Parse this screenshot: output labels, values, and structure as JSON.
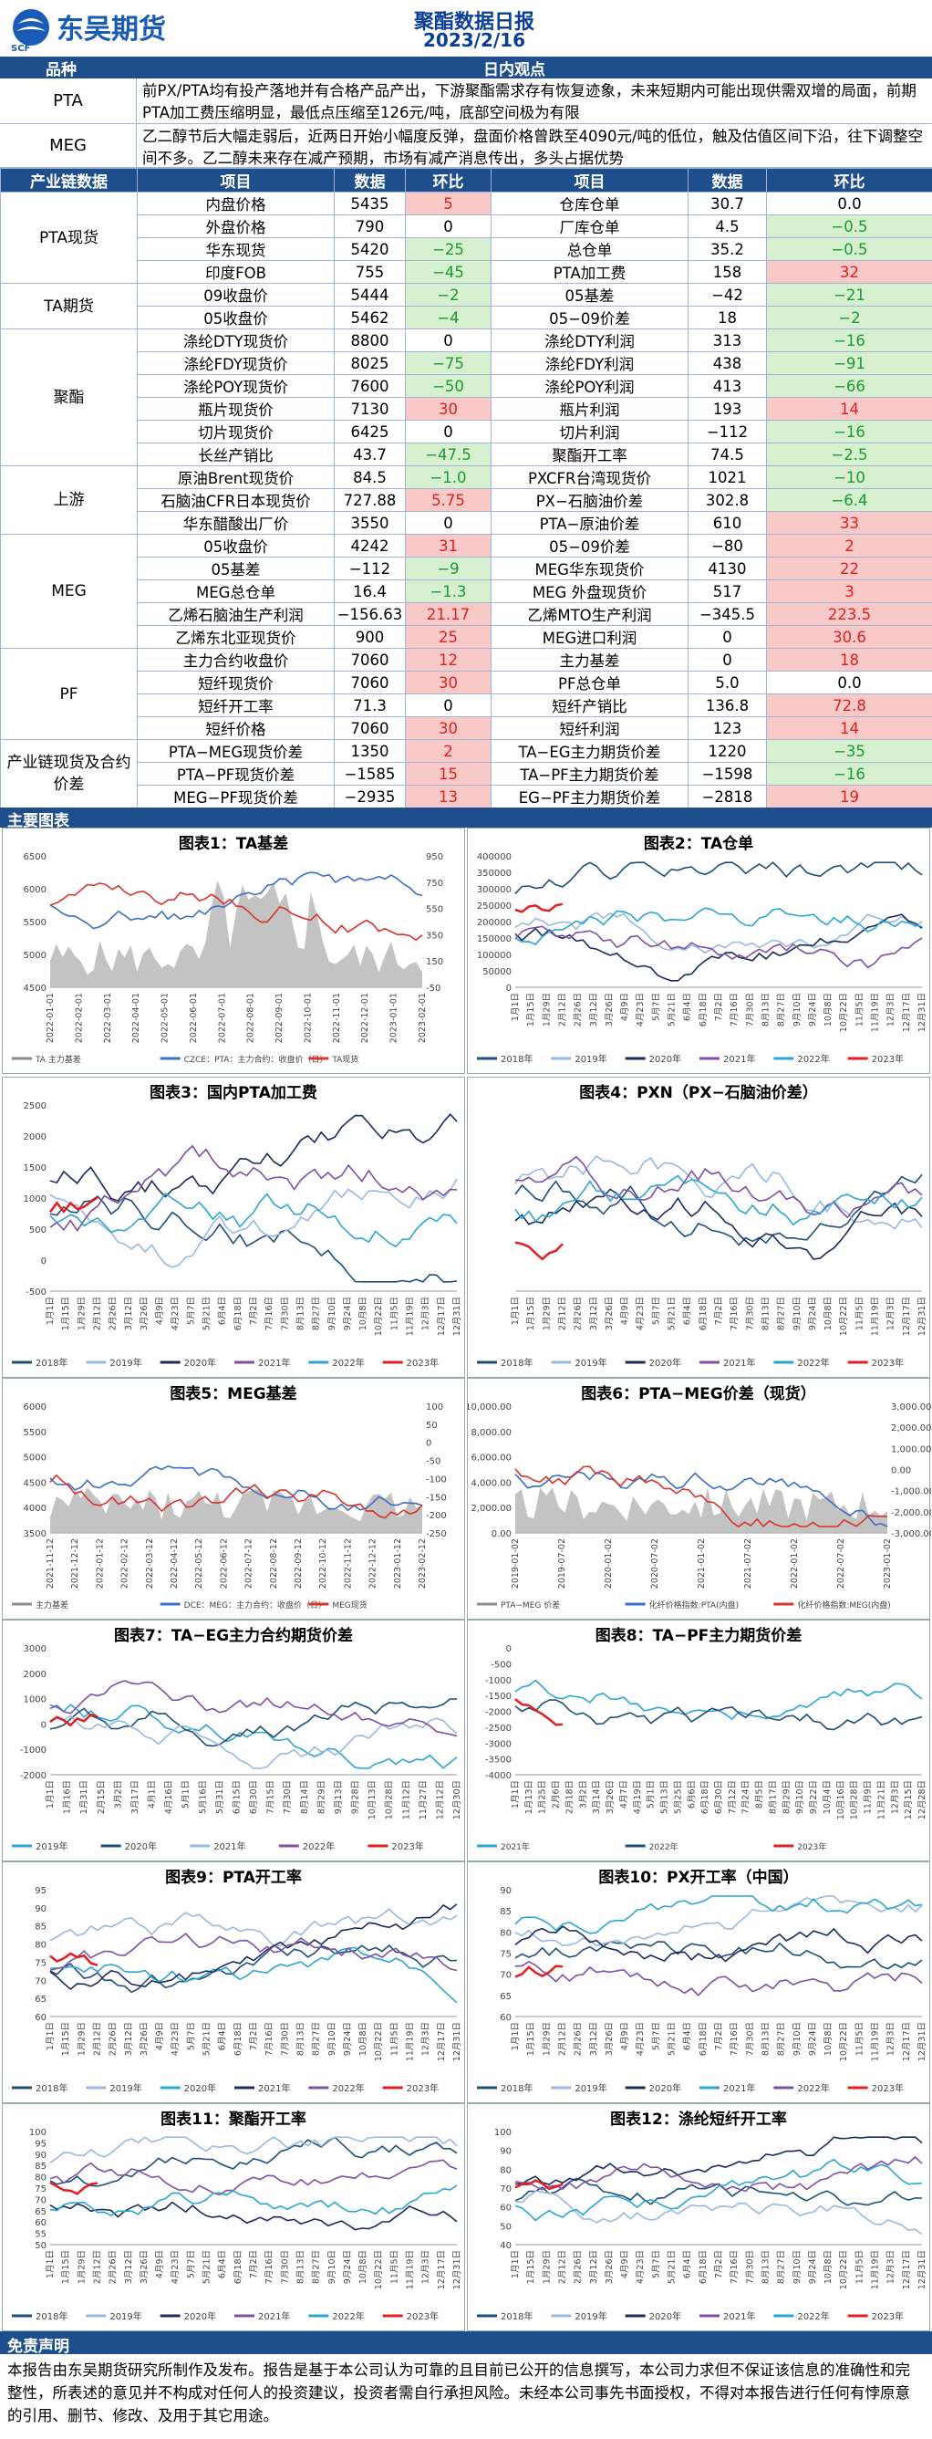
{
  "header": {
    "logo_text": "东吴期货",
    "logo_sub": "SCF",
    "title": "聚酯数据日报",
    "date": "2023/2/16"
  },
  "views": {
    "col_category": "品种",
    "col_view": "日内观点",
    "rows": [
      {
        "category": "PTA",
        "text": "前PX/PTA均有投产落地并有合格产品产出，下游聚酯需求存有恢复迹象，未来短期内可能出现供需双增的局面，前期PTA加工费压缩明显，最低点压缩至126元/吨，底部空间极为有限"
      },
      {
        "category": "MEG",
        "text": "乙二醇节后大幅走弱后，近两日开始小幅度反弹，盘面价格曾跌至4090元/吨的低位，触及估值区间下沿，往下调整空间不多。乙二醇未来存在减产预期，市场有减产消息传出，多头占据优势"
      }
    ]
  },
  "table": {
    "headers": [
      "产业链数据",
      "项目",
      "数据",
      "环比",
      "项目",
      "数据",
      "环比"
    ],
    "groups": [
      {
        "name": "PTA现货",
        "rows": [
          [
            "内盘价格",
            "5435",
            "5",
            "仓库仓单",
            "30.7",
            "0.0"
          ],
          [
            "外盘价格",
            "790",
            "0",
            "厂库仓单",
            "4.5",
            "−0.5"
          ],
          [
            "华东现货",
            "5420",
            "−25",
            "总仓单",
            "35.2",
            "−0.5"
          ],
          [
            "印度FOB",
            "755",
            "−45",
            "PTA加工费",
            "158",
            "32"
          ]
        ]
      },
      {
        "name": "TA期货",
        "rows": [
          [
            "09收盘价",
            "5444",
            "−2",
            "05基差",
            "−42",
            "−21"
          ],
          [
            "05收盘价",
            "5462",
            "−4",
            "05−09价差",
            "18",
            "−2"
          ]
        ]
      },
      {
        "name": "聚酯",
        "rows": [
          [
            "涤纶DTY现货价",
            "8800",
            "0",
            "涤纶DTY利润",
            "313",
            "−16"
          ],
          [
            "涤纶FDY现货价",
            "8025",
            "−75",
            "涤纶FDY利润",
            "438",
            "−91"
          ],
          [
            "涤纶POY现货价",
            "7600",
            "−50",
            "涤纶POY利润",
            "413",
            "−66"
          ],
          [
            "瓶片现货价",
            "7130",
            "30",
            "瓶片利润",
            "193",
            "14"
          ],
          [
            "切片现货价",
            "6425",
            "0",
            "切片利润",
            "−112",
            "−16"
          ],
          [
            "长丝产销比",
            "43.7",
            "−47.5",
            "聚酯开工率",
            "74.5",
            "−2.5"
          ]
        ]
      },
      {
        "name": "上游",
        "rows": [
          [
            "原油Brent现货价",
            "84.5",
            "−1.0",
            "PXCFR台湾现货价",
            "1021",
            "−10"
          ],
          [
            "石脑油CFR日本现货价",
            "727.88",
            "5.75",
            "PX−石脑油价差",
            "302.8",
            "−6.4"
          ],
          [
            "华东醋酸出厂价",
            "3550",
            "0",
            "PTA−原油价差",
            "610",
            "33"
          ]
        ]
      },
      {
        "name": "MEG",
        "rows": [
          [
            "05收盘价",
            "4242",
            "31",
            "05−09价差",
            "−80",
            "2"
          ],
          [
            "05基差",
            "−112",
            "−9",
            "MEG华东现货价",
            "4130",
            "22"
          ],
          [
            "MEG总仓单",
            "16.4",
            "−1.3",
            "MEG 外盘现货价",
            "517",
            "3"
          ],
          [
            "乙烯石脑油生产利润",
            "−156.63",
            "21.17",
            "乙烯MTO生产利润",
            "−345.5",
            "223.5"
          ],
          [
            "乙烯东北亚现货价",
            "900",
            "25",
            "MEG进口利润",
            "0",
            "30.6"
          ]
        ]
      },
      {
        "name": "PF",
        "rows": [
          [
            "主力合约收盘价",
            "7060",
            "12",
            "主力基差",
            "0",
            "18"
          ],
          [
            "短纤现货价",
            "7060",
            "30",
            "PF总仓单",
            "5.0",
            "0.0"
          ],
          [
            "短纤开工率",
            "71.3",
            "0",
            "短纤产销比",
            "136.8",
            "72.8"
          ],
          [
            "短纤价格",
            "7060",
            "30",
            "短纤利润",
            "123",
            "14"
          ]
        ]
      },
      {
        "name": "产业链现货及合约价差",
        "rows": [
          [
            "PTA−MEG现货价差",
            "1350",
            "2",
            "TA−EG主力期货价差",
            "1220",
            "−35"
          ],
          [
            "PTA−PF现货价差",
            "−1585",
            "15",
            "TA−PF主力期货价差",
            "−1598",
            "−16"
          ],
          [
            "MEG−PF现货价差",
            "−2935",
            "13",
            "EG−PF主力期货价差",
            "−2818",
            "19"
          ]
        ]
      }
    ]
  },
  "charts_section_title": "主要图表",
  "charts": [
    {
      "title": "图表1：TA基差",
      "left_ticks": [
        "6500",
        "6000",
        "5500",
        "5000",
        "4500"
      ],
      "right_ticks": [
        "950",
        "750",
        "550",
        "350",
        "150",
        "-50"
      ],
      "x_ticks": [
        "2022-01-01",
        "2022-02-01",
        "2022-03-01",
        "2022-04-01",
        "2022-05-01",
        "2022-06-01",
        "2022-07-01",
        "2022-08-01",
        "2022-09-01",
        "2022-10-01",
        "2022-11-01",
        "2022-12-01",
        "2023-01-01",
        "2023-02-01"
      ],
      "legend": [
        "TA 主力基差",
        "CZCE：PTA：主力合约：收盘价（日）",
        "TA现货"
      ],
      "colors": [
        "#8c8c8c",
        "#3a6fc4",
        "#d9332b"
      ]
    },
    {
      "title": "图表2：TA仓单",
      "left_ticks": [
        "400000",
        "350000",
        "300000",
        "250000",
        "200000",
        "150000",
        "100000",
        "50000",
        "0"
      ],
      "x_ticks": [
        "1月1日",
        "1月15日",
        "1月29日",
        "2月12日",
        "2月26日",
        "3月12日",
        "3月26日",
        "4月9日",
        "4月23日",
        "5月7日",
        "5月21日",
        "6月4日",
        "6月18日",
        "7月2日",
        "7月16日",
        "7月30日",
        "8月13日",
        "8月27日",
        "9月10日",
        "9月24日",
        "10月8日",
        "10月22日",
        "11月5日",
        "11月19日",
        "12月3日",
        "12月17日",
        "12月31日"
      ],
      "legend": [
        "2018年",
        "2019年",
        "2020年",
        "2021年",
        "2022年",
        "2023年"
      ],
      "colors": [
        "#1f4e79",
        "#9ab8e0",
        "#1c2b5c",
        "#7e4fa6",
        "#2aa6d1",
        "#e41e1e"
      ]
    },
    {
      "title": "图表3：国内PTA加工费",
      "left_ticks": [
        "2500",
        "2000",
        "1500",
        "1000",
        "500",
        "0",
        "-500"
      ],
      "x_ticks": [
        "1月1日",
        "1月15日",
        "1月29日",
        "2月12日",
        "2月26日",
        "3月12日",
        "3月26日",
        "4月9日",
        "4月23日",
        "5月7日",
        "5月21日",
        "6月4日",
        "6月18日",
        "7月2日",
        "7月16日",
        "7月30日",
        "8月13日",
        "8月27日",
        "9月10日",
        "9月24日",
        "10月8日",
        "10月22日",
        "11月5日",
        "11月19日",
        "12月3日",
        "12月17日",
        "12月31日"
      ],
      "legend": [
        "2018年",
        "2019年",
        "2020年",
        "2021年",
        "2022年",
        "2023年"
      ],
      "colors": [
        "#1f4e79",
        "#9ab8e0",
        "#1c2b5c",
        "#7e4fa6",
        "#2aa6d1",
        "#e41e1e"
      ]
    },
    {
      "title": "图表4：PXN（PX−石脑油价差）",
      "left_ticks": [],
      "x_ticks": [
        "1月1日",
        "1月15日",
        "1月29日",
        "2月12日",
        "2月26日",
        "3月12日",
        "3月26日",
        "4月9日",
        "4月23日",
        "5月7日",
        "5月21日",
        "6月4日",
        "6月18日",
        "7月2日",
        "7月16日",
        "7月30日",
        "8月13日",
        "8月27日",
        "9月10日",
        "9月24日",
        "10月8日",
        "10月22日",
        "11月5日",
        "11月19日",
        "12月3日",
        "12月17日",
        "12月31日"
      ],
      "legend": [
        "2018年",
        "2019年",
        "2020年",
        "2021年",
        "2022年",
        "2023年"
      ],
      "colors": [
        "#1f4e79",
        "#9ab8e0",
        "#1c2b5c",
        "#7e4fa6",
        "#2aa6d1",
        "#e41e1e"
      ]
    },
    {
      "title": "图表5：MEG基差",
      "left_ticks": [
        "6000",
        "5500",
        "5000",
        "4500",
        "4000",
        "3500"
      ],
      "right_ticks": [
        "100",
        "50",
        "0",
        "-50",
        "-100",
        "-150",
        "-200",
        "-250"
      ],
      "x_ticks": [
        "2021-11-12",
        "2021-12-12",
        "2022-01-12",
        "2022-02-12",
        "2022-03-12",
        "2022-04-12",
        "2022-05-12",
        "2022-06-12",
        "2022-07-12",
        "2022-08-12",
        "2022-09-12",
        "2022-10-12",
        "2022-11-12",
        "2022-12-12",
        "2023-01-12",
        "2023-02-12"
      ],
      "legend": [
        "主力基差",
        "DCE：MEG：主力合约：收盘价（日）",
        "MEG现货"
      ],
      "colors": [
        "#8c8c8c",
        "#3a6fc4",
        "#d9332b"
      ]
    },
    {
      "title": "图表6：PTA−MEG价差（现货）",
      "left_ticks": [
        "10,000.00",
        "8,000.00",
        "6,000.00",
        "4,000.00",
        "2,000.00",
        "0.00"
      ],
      "right_ticks": [
        "3,000.00",
        "2,000.00",
        "1,000.00",
        "0.00",
        "-1,000.00",
        "-2,000.00",
        "-3,000.00"
      ],
      "x_ticks": [
        "2019-01-02",
        "2019-07-02",
        "2020-01-02",
        "2020-07-02",
        "2021-01-02",
        "2021-07-02",
        "2022-01-02",
        "2022-07-02",
        "2023-01-02"
      ],
      "legend": [
        "PTA−MEG 价差",
        "化纤价格指数:PTA(内盘)",
        "化纤价格指数:MEG(内盘)"
      ],
      "colors": [
        "#8c8c8c",
        "#3a6fc4",
        "#d9332b"
      ]
    },
    {
      "title": "图表7：TA−EG主力合约期货价差",
      "left_ticks": [
        "3000",
        "2000",
        "1000",
        "0",
        "-1000",
        "-2000"
      ],
      "x_ticks": [
        "1月1日",
        "1月16日",
        "1月31日",
        "2月15日",
        "3月2日",
        "3月17日",
        "4月1日",
        "4月16日",
        "5月1日",
        "5月16日",
        "5月31日",
        "6月15日",
        "6月30日",
        "7月15日",
        "7月30日",
        "8月14日",
        "8月29日",
        "9月13日",
        "9月28日",
        "10月13日",
        "10月28日",
        "11月12日",
        "11月27日",
        "12月12日",
        "12月30日"
      ],
      "legend": [
        "2019年",
        "2020年",
        "2021年",
        "2022年",
        "2023年"
      ],
      "colors": [
        "#2aa6d1",
        "#1f4e79",
        "#9ab8e0",
        "#7e4fa6",
        "#e41e1e"
      ]
    },
    {
      "title": "图表8：TA−PF主力期货价差",
      "left_ticks": [
        "0",
        "-500",
        "-1000",
        "-1500",
        "-2000",
        "-2500",
        "-3000",
        "-3500",
        "-4000"
      ],
      "x_ticks": [
        "1月1日",
        "1月13日",
        "1月25日",
        "2月6日",
        "2月18日",
        "3月2日",
        "3月14日",
        "3月26日",
        "4月7日",
        "4月19日",
        "5月1日",
        "5月13日",
        "5月25日",
        "6月6日",
        "6月18日",
        "6月30日",
        "7月12日",
        "7月24日",
        "8月5日",
        "8月17日",
        "8月29日",
        "9月10日",
        "9月22日",
        "10月4日",
        "10月16日",
        "10月28日",
        "11月9日",
        "11月21日",
        "12月3日",
        "12月15日",
        "12月28日"
      ],
      "legend": [
        "2021年",
        "2022年",
        "2023年"
      ],
      "colors": [
        "#2aa6d1",
        "#1f4e79",
        "#e41e1e"
      ]
    },
    {
      "title": "图表9：PTA开工率",
      "left_ticks": [
        "95",
        "90",
        "85",
        "80",
        "75",
        "70",
        "65",
        "60"
      ],
      "x_ticks": [
        "1月1日",
        "1月15日",
        "1月29日",
        "2月12日",
        "2月26日",
        "3月12日",
        "3月26日",
        "4月9日",
        "4月23日",
        "5月7日",
        "5月21日",
        "6月4日",
        "6月18日",
        "7月2日",
        "7月16日",
        "7月30日",
        "8月13日",
        "8月27日",
        "9月10日",
        "9月24日",
        "10月8日",
        "10月22日",
        "11月5日",
        "11月19日",
        "12月3日",
        "12月17日",
        "12月31日"
      ],
      "legend": [
        "2018年",
        "2019年",
        "2020年",
        "2021年",
        "2022年",
        "2023年"
      ],
      "colors": [
        "#1f4e79",
        "#9ab8e0",
        "#2aa6d1",
        "#1c2b5c",
        "#7e4fa6",
        "#e41e1e"
      ]
    },
    {
      "title": "图表10：PX开工率（中国）",
      "left_ticks": [
        "90",
        "85",
        "80",
        "75",
        "70",
        "65",
        "60"
      ],
      "x_ticks": [
        "1月1日",
        "1月15日",
        "1月29日",
        "2月12日",
        "2月26日",
        "3月12日",
        "3月26日",
        "4月9日",
        "4月23日",
        "5月7日",
        "5月21日",
        "6月4日",
        "6月18日",
        "7月2日",
        "7月16日",
        "7月30日",
        "8月13日",
        "8月27日",
        "9月10日",
        "9月24日",
        "10月8日",
        "10月22日",
        "11月5日",
        "11月19日",
        "12月3日",
        "12月17日",
        "12月31日"
      ],
      "legend": [
        "2018年",
        "2019年",
        "2020年",
        "2021年",
        "2022年",
        "2023年"
      ],
      "colors": [
        "#1f4e79",
        "#9ab8e0",
        "#1c2b5c",
        "#2aa6d1",
        "#7e4fa6",
        "#e41e1e"
      ]
    },
    {
      "title": "图表11：聚酯开工率",
      "left_ticks": [
        "100",
        "95",
        "90",
        "85",
        "80",
        "75",
        "70",
        "65",
        "60",
        "55",
        "50"
      ],
      "x_ticks": [
        "1月1日",
        "1月15日",
        "1月29日",
        "2月12日",
        "2月26日",
        "3月12日",
        "3月26日",
        "4月9日",
        "4月23日",
        "5月7日",
        "5月21日",
        "6月4日",
        "6月18日",
        "7月2日",
        "7月16日",
        "7月30日",
        "8月13日",
        "8月27日",
        "9月10日",
        "9月24日",
        "10月8日",
        "10月22日",
        "11月5日",
        "11月19日",
        "12月3日",
        "12月17日",
        "12月31日"
      ],
      "legend": [
        "2018年",
        "2019年",
        "2020年",
        "2021年",
        "2022年",
        "2023年"
      ],
      "colors": [
        "#1f4e79",
        "#9ab8e0",
        "#1c2b5c",
        "#7e4fa6",
        "#2aa6d1",
        "#e41e1e"
      ]
    },
    {
      "title": "图表12：涤纶短纤开工率",
      "left_ticks": [
        "100",
        "90",
        "80",
        "70",
        "60",
        "50",
        "40"
      ],
      "x_ticks": [
        "1月1日",
        "1月15日",
        "1月29日",
        "2月12日",
        "2月26日",
        "3月12日",
        "3月26日",
        "4月9日",
        "4月23日",
        "5月7日",
        "5月21日",
        "6月4日",
        "6月18日",
        "7月2日",
        "7月16日",
        "7月30日",
        "8月13日",
        "8月27日",
        "9月10日",
        "9月24日",
        "10月8日",
        "10月22日",
        "11月5日",
        "11月19日",
        "12月3日",
        "12月17日",
        "12月31日"
      ],
      "legend": [
        "2018年",
        "2019年",
        "2020年",
        "2021年",
        "2022年",
        "2023年"
      ],
      "colors": [
        "#1f4e79",
        "#9ab8e0",
        "#1c2b5c",
        "#7e4fa6",
        "#2aa6d1",
        "#e41e1e"
      ]
    }
  ],
  "disclaimer": {
    "title": "免责声明",
    "text": "本报告由东吴期货研究所制作及发布。报告是基于本公司认为可靠的且目前已公开的信息撰写，本公司力求但不保证该信息的准确性和完整性，所表述的意见并不构成对任何人的投资建议，投资者需自行承担风险。未经本公司事先书面授权，不得对本报告进行任何有悖原意的引用、删节、修改、及用于其它用途。"
  }
}
